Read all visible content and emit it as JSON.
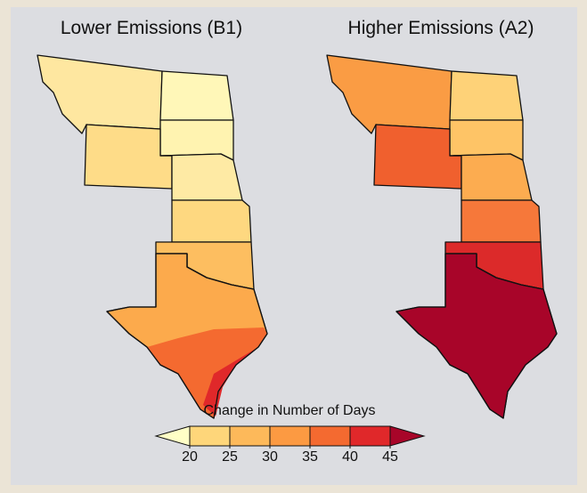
{
  "titles": [
    "Lower Emissions (B1)",
    "Higher Emissions (A2)"
  ],
  "legend": {
    "title": "Change in Number of Days",
    "ticks": [
      20,
      25,
      30,
      35,
      40,
      45
    ],
    "colors": [
      "#ffffc6",
      "#fed67a",
      "#fdb95a",
      "#fc9a42",
      "#f46a30",
      "#e0282a",
      "#a80529"
    ]
  }
}
